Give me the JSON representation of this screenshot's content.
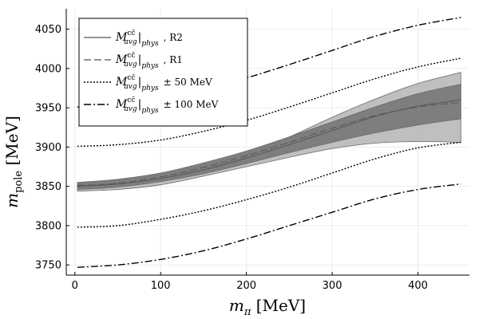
{
  "chart_data": {
    "type": "line",
    "title": "",
    "xlabel": "m_π [MeV]",
    "ylabel": "m_pole [MeV]",
    "xlim": [
      -10,
      460
    ],
    "ylim": [
      3737,
      4076
    ],
    "xticks": [
      0,
      100,
      200,
      300,
      400
    ],
    "yticks": [
      3750,
      3800,
      3850,
      3900,
      3950,
      4000,
      4050
    ],
    "grid": true,
    "legend_position": "top-left",
    "x": [
      3,
      50,
      100,
      150,
      200,
      250,
      300,
      350,
      400,
      450
    ],
    "series": [
      {
        "name": "M^{c c̄}_{avg}|_{phys} , R2",
        "style": "solid",
        "values": [
          3850,
          3853,
          3860,
          3871,
          3886,
          3903,
          3921,
          3939,
          3952,
          3960
        ],
        "band_lower": [
          3844,
          3846,
          3852,
          3863,
          3875,
          3887,
          3898,
          3905,
          3907,
          3906
        ],
        "band_upper": [
          3854,
          3857,
          3865,
          3877,
          3892,
          3913,
          3938,
          3961,
          3981,
          3995
        ]
      },
      {
        "name": "M^{c c̄}_{avg}|_{phys} , R1",
        "style": "dashed",
        "values": [
          3851,
          3854,
          3862,
          3874,
          3889,
          3906,
          3924,
          3940,
          3951,
          3957
        ],
        "band_lower": [
          3846,
          3849,
          3856,
          3866,
          3879,
          3893,
          3906,
          3918,
          3928,
          3936
        ],
        "band_upper": [
          3855,
          3859,
          3867,
          3880,
          3895,
          3913,
          3932,
          3951,
          3968,
          3980
        ]
      },
      {
        "name": "M^{c c̄}_{avg}|_{phys} ± 50 MeV",
        "style": "dotted",
        "upper": [
          3901,
          3903,
          3909,
          3920,
          3934,
          3951,
          3969,
          3987,
          4002,
          4013
        ],
        "lower": [
          3798,
          3800,
          3808,
          3819,
          3833,
          3849,
          3867,
          3885,
          3899,
          3906
        ]
      },
      {
        "name": "M^{c c̄}_{avg}|_{phys} ± 100 MeV",
        "style": "dashdot",
        "upper": [
          3951,
          3954,
          3962,
          3973,
          3988,
          4005,
          4023,
          4041,
          4055,
          4065
        ],
        "lower": [
          3747,
          3750,
          3757,
          3768,
          3783,
          3800,
          3817,
          3834,
          3846,
          3853
        ]
      }
    ],
    "legend": {
      "entries": [
        {
          "sym": "M",
          "sup": "cc̄",
          "sub": "avg",
          "sub2": "phys",
          "suffix": ", R2"
        },
        {
          "sym": "M",
          "sup": "cc̄",
          "sub": "avg",
          "sub2": "phys",
          "suffix": ", R1"
        },
        {
          "sym": "M",
          "sup": "cc̄",
          "sub": "avg",
          "sub2": "phys",
          "suffix": "± 50   MeV"
        },
        {
          "sym": "M",
          "sup": "cc̄",
          "sub": "avg",
          "sub2": "phys",
          "suffix": "± 100   MeV"
        }
      ]
    },
    "colors": {
      "band_dark": "#7a7a7a",
      "band_light": "#bcbcbc",
      "line": "#555555",
      "ref_lines": "#000000",
      "grid": "#ececec",
      "axis": "#000000"
    }
  }
}
